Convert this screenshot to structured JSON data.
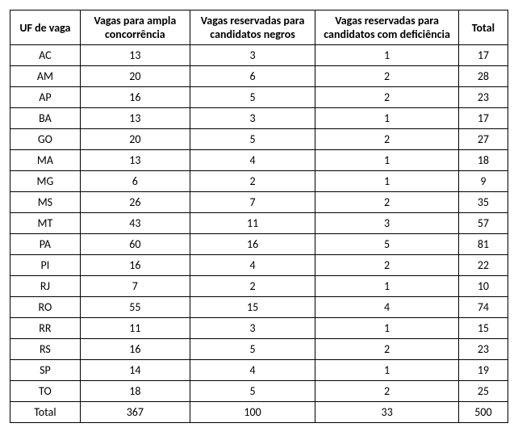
{
  "table": {
    "columns": [
      "UF de vaga",
      "Vagas para ampla concorrência",
      "Vagas reservadas para candidatos negros",
      "Vagas reservadas para candidatos com deficiência",
      "Total"
    ],
    "rows": [
      [
        "AC",
        "13",
        "3",
        "1",
        "17"
      ],
      [
        "AM",
        "20",
        "6",
        "2",
        "28"
      ],
      [
        "AP",
        "16",
        "5",
        "2",
        "23"
      ],
      [
        "BA",
        "13",
        "3",
        "1",
        "17"
      ],
      [
        "GO",
        "20",
        "5",
        "2",
        "27"
      ],
      [
        "MA",
        "13",
        "4",
        "1",
        "18"
      ],
      [
        "MG",
        "6",
        "2",
        "1",
        "9"
      ],
      [
        "MS",
        "26",
        "7",
        "2",
        "35"
      ],
      [
        "MT",
        "43",
        "11",
        "3",
        "57"
      ],
      [
        "PA",
        "60",
        "16",
        "5",
        "81"
      ],
      [
        "PI",
        "16",
        "4",
        "2",
        "22"
      ],
      [
        "RJ",
        "7",
        "2",
        "1",
        "10"
      ],
      [
        "RO",
        "55",
        "15",
        "4",
        "74"
      ],
      [
        "RR",
        "11",
        "3",
        "1",
        "15"
      ],
      [
        "RS",
        "16",
        "5",
        "2",
        "23"
      ],
      [
        "SP",
        "14",
        "4",
        "1",
        "19"
      ],
      [
        "TO",
        "18",
        "5",
        "2",
        "25"
      ],
      [
        "Total",
        "367",
        "100",
        "33",
        "500"
      ]
    ],
    "header_fontsize": 14,
    "cell_fontsize": 14,
    "border_color": "#000000",
    "background_color": "#ffffff",
    "text_color": "#000000"
  }
}
